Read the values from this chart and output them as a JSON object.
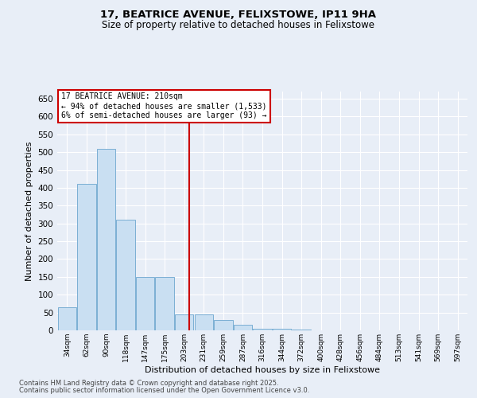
{
  "title1": "17, BEATRICE AVENUE, FELIXSTOWE, IP11 9HA",
  "title2": "Size of property relative to detached houses in Felixstowe",
  "xlabel": "Distribution of detached houses by size in Felixstowe",
  "ylabel": "Number of detached properties",
  "annotation_lines": [
    "17 BEATRICE AVENUE: 210sqm",
    "← 94% of detached houses are smaller (1,533)",
    "6% of semi-detached houses are larger (93) →"
  ],
  "footnote1": "Contains HM Land Registry data © Crown copyright and database right 2025.",
  "footnote2": "Contains public sector information licensed under the Open Government Licence v3.0.",
  "bar_color": "#c9dff2",
  "bar_edgecolor": "#7bafd4",
  "bg_color": "#e8eef7",
  "grid_color": "#ffffff",
  "vline_color": "#cc0000",
  "vline_x": 6.25,
  "categories": [
    "34sqm",
    "62sqm",
    "90sqm",
    "118sqm",
    "147sqm",
    "175sqm",
    "203sqm",
    "231sqm",
    "259sqm",
    "287sqm",
    "316sqm",
    "344sqm",
    "372sqm",
    "400sqm",
    "428sqm",
    "456sqm",
    "484sqm",
    "513sqm",
    "541sqm",
    "569sqm",
    "597sqm"
  ],
  "values": [
    65,
    410,
    510,
    310,
    150,
    150,
    45,
    45,
    30,
    15,
    5,
    5,
    3,
    1,
    1,
    0,
    0,
    0,
    0,
    0,
    1
  ],
  "ylim": [
    0,
    670
  ],
  "yticks": [
    0,
    50,
    100,
    150,
    200,
    250,
    300,
    350,
    400,
    450,
    500,
    550,
    600,
    650
  ]
}
